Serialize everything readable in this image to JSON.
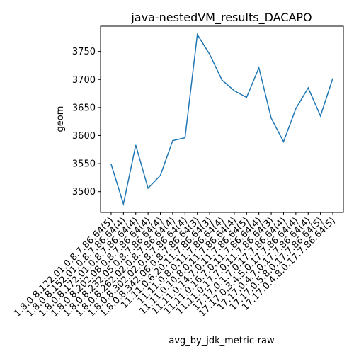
{
  "chart_data": {
    "type": "line",
    "title": "java-nestedVM_results_DACAPO",
    "x_label": "avg_by_jdk_metric-raw",
    "y_label": "geom",
    "categories": [
      "1.8.0.8.122.01.0.8.7.86.64(5)",
      "1.8.0.8.152.01.0.8.7.86.64(4)",
      "1.8.0.8.172.01.0.8.7.86.64(4)",
      "1.8.0.8.202.08.0.8.7.86.64(4)",
      "1.8.0.8.232.05.0.8.7.86.64(4)",
      "1.8.0.8.262.02.0.8.7.86.64(4)",
      "1.8.0.8.302.02.0.8.7.86.64(4)",
      "1.8.0.8.342.06.0.8.7.86.64(3)",
      "11.11.0.6.20.11.7.86.64(3)",
      "11.11.0.8.0.11.7.86.64(4)",
      "11.11.0.10.8.0.11.7.86.64(4)",
      "11.11.0.14.7.0.11.7.86.64(5)",
      "11.11.0.16.7.0.11.7.86.64(4)",
      "11.11.0.17.7.0.11.7.86.64(3)",
      "17.17.0.1.7.0.17.7.86.64(4)",
      "17.17.0.3.4.5.0.17.7.86.64(4)",
      "17.17.0.4.7.0.17.7.86.64(4)",
      "17.17.0.5.8.0.17.7.86.64(5)",
      "17.17.0.4.8.0.17.7.86.64(5)"
    ],
    "series": [
      {
        "name": "geom",
        "color": "#1f77b4",
        "values": [
          3549,
          3478,
          3583,
          3506,
          3529,
          3591,
          3596,
          3780,
          3745,
          3699,
          3680,
          3668,
          3721,
          3631,
          3589,
          3648,
          3685,
          3635,
          3702
        ]
      }
    ],
    "ylim": [
      3463,
      3795
    ],
    "yticks": [
      3500,
      3550,
      3600,
      3650,
      3700,
      3750
    ]
  }
}
